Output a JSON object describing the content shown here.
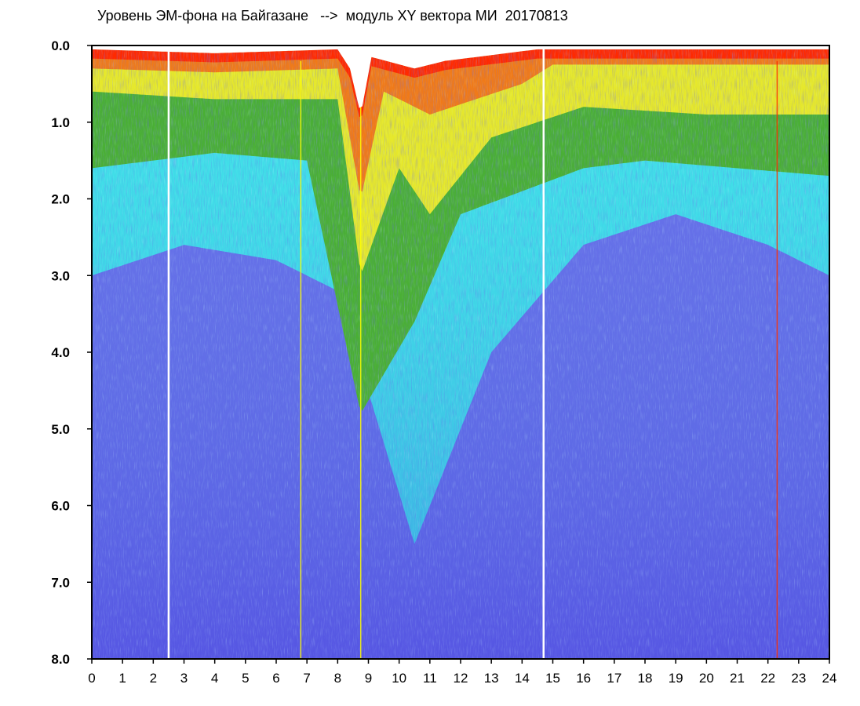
{
  "title": "Уровень ЭМ-фона на Байгазане   -->  модуль XY вектора МИ  20170813",
  "chart_data": {
    "type": "heatmap",
    "title": "Уровень ЭМ-фона на Байгазане   -->  модуль XY вектора МИ  20170813",
    "xlabel": "",
    "ylabel": "",
    "xlim": [
      0,
      24
    ],
    "ylim": [
      8.0,
      0.0
    ],
    "y_axis_inverted": true,
    "x_ticks": [
      "0",
      "1",
      "2",
      "3",
      "4",
      "5",
      "6",
      "7",
      "8",
      "9",
      "10",
      "11",
      "12",
      "13",
      "14",
      "15",
      "16",
      "17",
      "18",
      "19",
      "20",
      "21",
      "22",
      "23",
      "24"
    ],
    "y_ticks": [
      "0.0",
      "1.0",
      "2.0",
      "3.0",
      "4.0",
      "5.0",
      "6.0",
      "7.0",
      "8.0"
    ],
    "colors": {
      "frame": "#000000",
      "very_high": "#ff2a00",
      "high": "#ffff00",
      "medium": "#1a9a1a",
      "low": "#40e0e8",
      "very_low": "#3030d8"
    },
    "gap_lines_hours": [
      2.5,
      14.7
    ],
    "highlight_lines_hours": [
      {
        "x": 6.8,
        "color": "#ffff00"
      },
      {
        "x": 8.75,
        "color": "#ffff00"
      },
      {
        "x": 22.3,
        "color": "#ff3000"
      }
    ],
    "upper_boundary": [
      {
        "x": 0,
        "y": 0.05
      },
      {
        "x": 4,
        "y": 0.1
      },
      {
        "x": 8,
        "y": 0.05
      },
      {
        "x": 8.4,
        "y": 0.3
      },
      {
        "x": 8.75,
        "y": 0.9
      },
      {
        "x": 9.1,
        "y": 0.15
      },
      {
        "x": 10.5,
        "y": 0.3
      },
      {
        "x": 11.5,
        "y": 0.2
      },
      {
        "x": 14.5,
        "y": 0.05
      },
      {
        "x": 24,
        "y": 0.05
      }
    ],
    "red_orange_depth": [
      {
        "x": 0,
        "y": 0.3
      },
      {
        "x": 4,
        "y": 0.35
      },
      {
        "x": 8,
        "y": 0.3
      },
      {
        "x": 8.75,
        "y": 2.0
      },
      {
        "x": 9.5,
        "y": 0.6
      },
      {
        "x": 11,
        "y": 0.9
      },
      {
        "x": 14,
        "y": 0.5
      },
      {
        "x": 15,
        "y": 0.25
      },
      {
        "x": 24,
        "y": 0.25
      }
    ],
    "yellow_depth": [
      {
        "x": 0,
        "y": 0.6
      },
      {
        "x": 4,
        "y": 0.7
      },
      {
        "x": 8,
        "y": 0.7
      },
      {
        "x": 8.75,
        "y": 3.0
      },
      {
        "x": 10,
        "y": 1.6
      },
      {
        "x": 11,
        "y": 2.2
      },
      {
        "x": 13,
        "y": 1.2
      },
      {
        "x": 16,
        "y": 0.8
      },
      {
        "x": 20,
        "y": 0.9
      },
      {
        "x": 24,
        "y": 0.9
      }
    ],
    "green_depth": [
      {
        "x": 0,
        "y": 1.6
      },
      {
        "x": 4,
        "y": 1.4
      },
      {
        "x": 7,
        "y": 1.5
      },
      {
        "x": 8.75,
        "y": 4.8
      },
      {
        "x": 10.5,
        "y": 3.6
      },
      {
        "x": 12,
        "y": 2.2
      },
      {
        "x": 16,
        "y": 1.6
      },
      {
        "x": 18,
        "y": 1.5
      },
      {
        "x": 24,
        "y": 1.7
      }
    ],
    "cyan_depth": [
      {
        "x": 0,
        "y": 3.0
      },
      {
        "x": 3,
        "y": 2.6
      },
      {
        "x": 6,
        "y": 2.8
      },
      {
        "x": 8,
        "y": 3.2
      },
      {
        "x": 10.5,
        "y": 6.5
      },
      {
        "x": 13,
        "y": 4.0
      },
      {
        "x": 16,
        "y": 2.6
      },
      {
        "x": 19,
        "y": 2.2
      },
      {
        "x": 22,
        "y": 2.6
      },
      {
        "x": 24,
        "y": 3.0
      }
    ]
  }
}
